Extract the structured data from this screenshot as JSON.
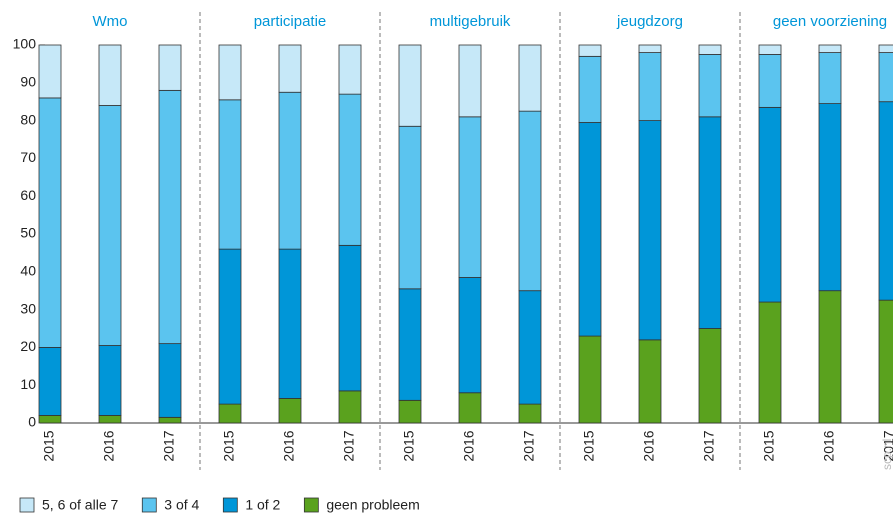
{
  "chart_data": {
    "type": "stacked_bar",
    "groups": [
      "Wmo",
      "participatie",
      "multigebruik",
      "jeugdzorg",
      "geen voorziening"
    ],
    "categories": [
      "2015",
      "2016",
      "2017",
      "2015",
      "2016",
      "2017",
      "2015",
      "2016",
      "2017",
      "2015",
      "2016",
      "2017",
      "2015",
      "2016",
      "2017"
    ],
    "series": [
      {
        "name": "geen probleem",
        "color": "#5aa21e",
        "values": [
          2,
          2,
          1.5,
          5,
          6.5,
          8.5,
          6,
          8,
          5,
          23,
          22,
          25,
          32,
          35,
          32.5
        ]
      },
      {
        "name": "1 of 2",
        "color": "#0096d8",
        "values": [
          18,
          18.5,
          19.5,
          41,
          39.5,
          38.5,
          29.5,
          30.5,
          30,
          56.5,
          58,
          56,
          51.5,
          49.5,
          52.5
        ]
      },
      {
        "name": "3 of 4",
        "color": "#5bc4ef",
        "values": [
          66,
          63.5,
          67,
          39.5,
          41.5,
          40,
          43,
          42.5,
          47.5,
          17.5,
          18,
          16.5,
          14,
          13.5,
          13
        ]
      },
      {
        "name": "5, 6 of alle 7",
        "color": "#c6e8f8",
        "values": [
          14,
          16,
          12,
          14.5,
          12.5,
          13,
          21.5,
          19,
          17.5,
          3,
          2,
          2.5,
          2.5,
          2,
          2
        ]
      }
    ],
    "ylim": [
      0,
      100
    ],
    "yticks": [
      0,
      10,
      20,
      30,
      40,
      50,
      60,
      70,
      80,
      90,
      100
    ],
    "watermark": "scp.nl"
  }
}
